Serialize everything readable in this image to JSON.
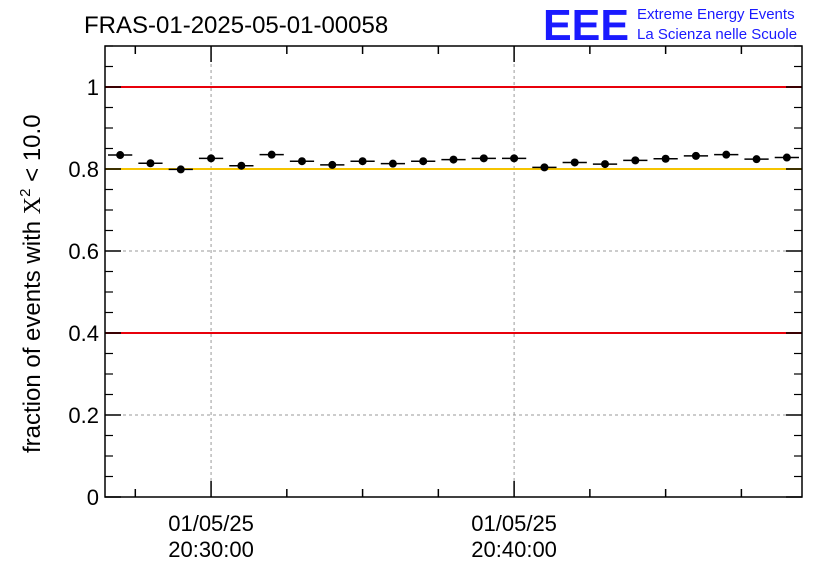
{
  "run_title": "FRAS-01-2025-05-01-00058",
  "logo": {
    "mark": "EEE",
    "line1": "Extreme Energy Events",
    "line2": "La Scienza nelle Scuole"
  },
  "colors": {
    "threshold_red": "#e8000b",
    "threshold_yellow": "#f5c400",
    "logo_blue": "#1a1aff",
    "marker": "#000000"
  },
  "chart_data": {
    "type": "scatter",
    "title": "FRAS-01-2025-05-01-00058",
    "ylabel_prefix": "fraction of events with",
    "ylabel_symbol": "X",
    "ylabel_sup": "2",
    "ylabel_suffix": "< 10.0",
    "ylim": [
      0,
      1.1
    ],
    "yticks": [
      0,
      0.2,
      0.4,
      0.6,
      0.8,
      1
    ],
    "ytick_labels": [
      "0",
      "0.2",
      "0.4",
      "0.6",
      "0.8",
      "1"
    ],
    "xlim_minutes": [
      23.25,
      46.25
    ],
    "xticks": [
      {
        "minute": 26.75,
        "date": "01/05/25",
        "time": "20:30:00"
      },
      {
        "minute": 36.75,
        "date": "01/05/25",
        "time": "20:40:00"
      }
    ],
    "grid": true,
    "hlines": [
      {
        "y": 1.0,
        "color": "red"
      },
      {
        "y": 0.8,
        "color": "yellow"
      },
      {
        "y": 0.4,
        "color": "red"
      }
    ],
    "bin_width_minutes": 0.8,
    "x": [
      23.75,
      24.75,
      25.75,
      26.75,
      27.75,
      28.75,
      29.75,
      30.75,
      31.75,
      32.75,
      33.75,
      34.75,
      35.75,
      36.75,
      37.75,
      38.75,
      39.75,
      40.75,
      41.75,
      42.75,
      43.75,
      44.75,
      45.75
    ],
    "y": [
      0.834,
      0.814,
      0.799,
      0.826,
      0.808,
      0.835,
      0.819,
      0.81,
      0.819,
      0.813,
      0.819,
      0.823,
      0.826,
      0.826,
      0.804,
      0.816,
      0.812,
      0.821,
      0.825,
      0.832,
      0.835,
      0.824,
      0.828
    ]
  }
}
